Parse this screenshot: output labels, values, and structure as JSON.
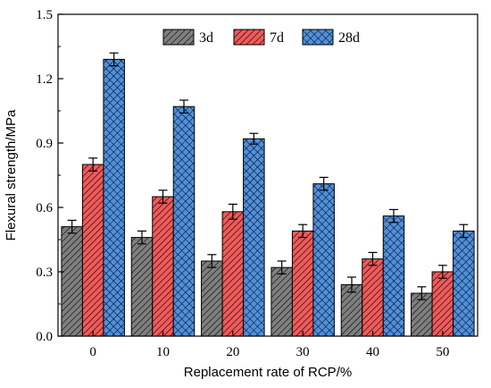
{
  "chart_data": {
    "type": "bar",
    "title": "",
    "xlabel": "Replacement rate of RCP/%",
    "ylabel": "Flexural strength/MPa",
    "categories": [
      "0",
      "10",
      "20",
      "30",
      "40",
      "50"
    ],
    "ylim": [
      0,
      1.5
    ],
    "yticks": [
      "0.0",
      "0.3",
      "0.6",
      "0.9",
      "1.2",
      "1.5"
    ],
    "legend_position": "top-center",
    "grid": false,
    "series": [
      {
        "name": "3d",
        "values": [
          0.51,
          0.46,
          0.35,
          0.32,
          0.24,
          0.2
        ],
        "errors": [
          0.03,
          0.03,
          0.03,
          0.03,
          0.035,
          0.03
        ],
        "color": "#7f7f7f",
        "pattern": "diagonal-hatch"
      },
      {
        "name": "7d",
        "values": [
          0.8,
          0.65,
          0.58,
          0.49,
          0.36,
          0.3
        ],
        "errors": [
          0.03,
          0.03,
          0.035,
          0.03,
          0.03,
          0.03
        ],
        "color": "#f05a5a",
        "pattern": "diagonal-hatch"
      },
      {
        "name": "28d",
        "values": [
          1.29,
          1.07,
          0.92,
          0.71,
          0.56,
          0.49
        ],
        "errors": [
          0.03,
          0.03,
          0.025,
          0.03,
          0.03,
          0.03
        ],
        "color": "#4f8fdc",
        "pattern": "cross-hatch"
      }
    ]
  }
}
